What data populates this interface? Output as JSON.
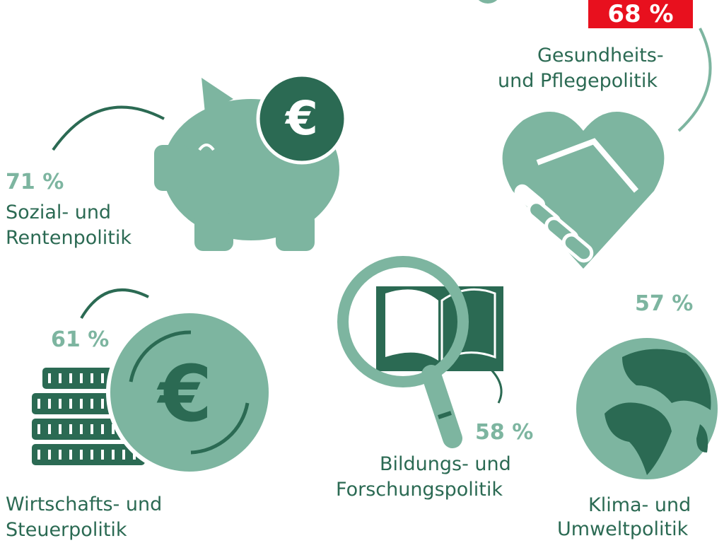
{
  "colors": {
    "dark_green": "#2b6a53",
    "light_green": "#7db5a0",
    "highlight_red": "#e8101e"
  },
  "items": [
    {
      "percent": "71 %",
      "label_line1": "Sozial- und",
      "label_line2": "Rentenpolitik",
      "icon": "piggy-bank-euro-icon"
    },
    {
      "percent": "68 %",
      "label_line1": "Gesundheits-",
      "label_line2": "und Pflegepolitik",
      "icon": "heart-handshake-icon",
      "highlighted": true
    },
    {
      "percent": "61 %",
      "label_line1": "Wirtschafts- und",
      "label_line2": "Steuerpolitik",
      "icon": "coins-euro-icon"
    },
    {
      "percent": "58 %",
      "label_line1": "Bildungs- und",
      "label_line2": "Forschungspolitik",
      "icon": "book-magnifier-icon"
    },
    {
      "percent": "57 %",
      "label_line1": "Klima- und",
      "label_line2": "Umweltpolitik",
      "icon": "globe-icon"
    }
  ]
}
